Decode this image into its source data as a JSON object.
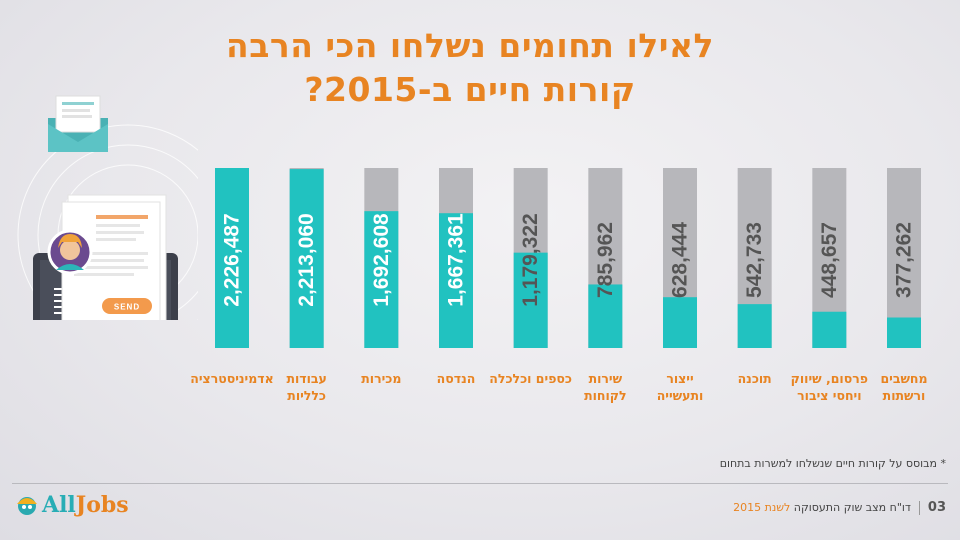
{
  "title": {
    "line1": "לאילו תחומים נשלחו הכי הרבה",
    "line2": "קורות חיים ב-2015?"
  },
  "chart_data": {
    "type": "bar",
    "categories": [
      "אדמיניסטרציה",
      "עבודות כלליות",
      "מכירות",
      "הנדסה",
      "כספים וכלכלה",
      "שירות לקוחות",
      "ייצור ותעשייה",
      "תוכנה",
      "פרסום, שיווק ויחסי ציבור",
      "מחשבים ורשתות"
    ],
    "category_display": [
      "אדמיניסטרציה",
      "עבודות\nכלליות",
      "מכירות",
      "הנדסה",
      "כספים וכלכלה",
      "שירות\nלקוחות",
      "ייצור\nותעשייה",
      "תוכנה",
      "פרסום, שיווק\nויחסי ציבור",
      "מחשבים\nורשתות"
    ],
    "values": [
      2226487,
      2213060,
      1692608,
      1667361,
      1179322,
      785962,
      628444,
      542733,
      448657,
      377262
    ],
    "value_labels": [
      "2,226,487",
      "2,213,060",
      "1,692,608",
      "1,667,361",
      "1,179,322",
      "785,962",
      "628,444",
      "542,733",
      "448,657",
      "377,262"
    ],
    "ylim": [
      0,
      2226487
    ],
    "colors": {
      "fill": "#21c2c0",
      "track": "#b7b7bb",
      "label": "#e88422"
    }
  },
  "footnote": "* מבוסס על קורות חיים שנשלחו למשרות בתחום",
  "footer": {
    "page": "03",
    "report": "דו\"ח מצב שוק התעסוקה",
    "year": "לשנת 2015"
  },
  "illustration": {
    "send_label": "SEND"
  },
  "logo": {
    "all": "All",
    "jobs": "Jobs"
  }
}
